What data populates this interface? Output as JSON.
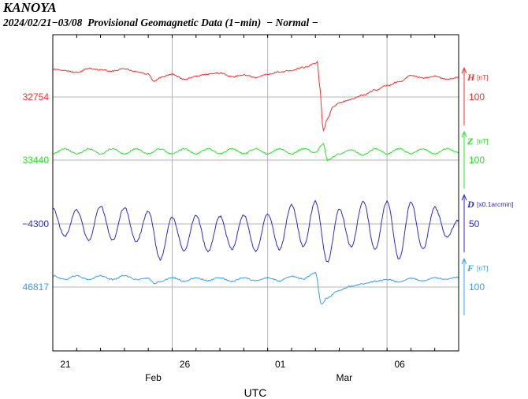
{
  "header": {
    "station": "KANOYA",
    "subtitle": "2024/02/21−03/08  Provisional Geomagnetic Data (1−min)  − Normal −"
  },
  "chart_data": {
    "type": "line",
    "title": "KANOYA",
    "subtitle": "2024/02/21−03/08  Provisional Geomagnetic Data (1−min)  − Normal −",
    "xlabel": "UTC",
    "x_range": [
      "2024-02-21T00:00",
      "2024-03-09T00:00"
    ],
    "x_ticks": [
      {
        "date": "2024-02-21",
        "label": "21"
      },
      {
        "date": "2024-02-26",
        "label": "26"
      },
      {
        "date": "2024-03-01",
        "label": "01"
      },
      {
        "date": "2024-03-06",
        "label": "06"
      }
    ],
    "month_labels": [
      {
        "date": "2024-02-25",
        "label": "Feb"
      },
      {
        "date": "2024-03-04",
        "label": "Mar"
      }
    ],
    "grid": true,
    "series": [
      {
        "name": "H",
        "unit": "[nT]",
        "color": "#ff2a2a",
        "baseline_label": "32754",
        "scale_label": "100",
        "scale_value": 100,
        "points": [
          [
            "2024-02-21T00:00",
            32798
          ],
          [
            "2024-02-21T12:00",
            32796
          ],
          [
            "2024-02-22T00:00",
            32793
          ],
          [
            "2024-02-22T12:00",
            32799
          ],
          [
            "2024-02-23T00:00",
            32797
          ],
          [
            "2024-02-23T12:00",
            32795
          ],
          [
            "2024-02-24T00:00",
            32799
          ],
          [
            "2024-02-24T12:00",
            32794
          ],
          [
            "2024-02-25T00:00",
            32790
          ],
          [
            "2024-02-25T06:00",
            32779
          ],
          [
            "2024-02-25T12:00",
            32785
          ],
          [
            "2024-02-26T00:00",
            32790
          ],
          [
            "2024-02-26T12:00",
            32782
          ],
          [
            "2024-02-27T00:00",
            32787
          ],
          [
            "2024-02-27T12:00",
            32790
          ],
          [
            "2024-02-28T00:00",
            32792
          ],
          [
            "2024-02-28T12:00",
            32786
          ],
          [
            "2024-02-29T00:00",
            32789
          ],
          [
            "2024-02-29T12:00",
            32785
          ],
          [
            "2024-03-01T00:00",
            32790
          ],
          [
            "2024-03-01T12:00",
            32794
          ],
          [
            "2024-03-02T00:00",
            32796
          ],
          [
            "2024-03-02T12:00",
            32801
          ],
          [
            "2024-03-03T00:00",
            32807
          ],
          [
            "2024-03-03T02:00",
            32810
          ],
          [
            "2024-03-03T04:00",
            32775
          ],
          [
            "2024-03-03T08:00",
            32700
          ],
          [
            "2024-03-03T12:00",
            32720
          ],
          [
            "2024-03-03T18:00",
            32738
          ],
          [
            "2024-03-04T00:00",
            32745
          ],
          [
            "2024-03-04T12:00",
            32750
          ],
          [
            "2024-03-05T00:00",
            32757
          ],
          [
            "2024-03-05T12:00",
            32765
          ],
          [
            "2024-03-06T00:00",
            32772
          ],
          [
            "2024-03-06T12:00",
            32778
          ],
          [
            "2024-03-07T00:00",
            32788
          ],
          [
            "2024-03-07T12:00",
            32784
          ],
          [
            "2024-03-08T00:00",
            32787
          ],
          [
            "2024-03-08T12:00",
            32782
          ],
          [
            "2024-03-09T00:00",
            32785
          ]
        ]
      },
      {
        "name": "Z",
        "unit": "[nT]",
        "color": "#22e622",
        "baseline_label": "33440",
        "scale_label": "100",
        "scale_value": 100,
        "points": [
          [
            "2024-02-21T00:00",
            33450
          ],
          [
            "2024-02-21T12:00",
            33458
          ],
          [
            "2024-02-22T00:00",
            33450
          ],
          [
            "2024-02-22T12:00",
            33458
          ],
          [
            "2024-02-23T00:00",
            33450
          ],
          [
            "2024-02-23T12:00",
            33458
          ],
          [
            "2024-02-24T00:00",
            33450
          ],
          [
            "2024-02-24T12:00",
            33458
          ],
          [
            "2024-02-25T00:00",
            33450
          ],
          [
            "2024-02-25T12:00",
            33458
          ],
          [
            "2024-02-26T00:00",
            33450
          ],
          [
            "2024-02-26T12:00",
            33458
          ],
          [
            "2024-02-27T00:00",
            33450
          ],
          [
            "2024-02-27T12:00",
            33458
          ],
          [
            "2024-02-28T00:00",
            33450
          ],
          [
            "2024-02-28T12:00",
            33458
          ],
          [
            "2024-02-29T00:00",
            33450
          ],
          [
            "2024-02-29T12:00",
            33458
          ],
          [
            "2024-03-01T00:00",
            33450
          ],
          [
            "2024-03-01T12:00",
            33458
          ],
          [
            "2024-03-02T00:00",
            33450
          ],
          [
            "2024-03-02T12:00",
            33458
          ],
          [
            "2024-03-03T00:00",
            33452
          ],
          [
            "2024-03-03T08:00",
            33466
          ],
          [
            "2024-03-03T12:00",
            33440
          ],
          [
            "2024-03-04T00:00",
            33450
          ],
          [
            "2024-03-04T12:00",
            33456
          ],
          [
            "2024-03-05T00:00",
            33448
          ],
          [
            "2024-03-05T12:00",
            33458
          ],
          [
            "2024-03-06T00:00",
            33450
          ],
          [
            "2024-03-06T12:00",
            33458
          ],
          [
            "2024-03-07T00:00",
            33450
          ],
          [
            "2024-03-07T12:00",
            33458
          ],
          [
            "2024-03-08T00:00",
            33450
          ],
          [
            "2024-03-08T12:00",
            33458
          ],
          [
            "2024-03-09T00:00",
            33452
          ]
        ]
      },
      {
        "name": "D",
        "unit": "[x0.1arcmin]",
        "color": "#2a2ad6",
        "baseline_label": "−4300",
        "scale_label": "50",
        "scale_value": 50,
        "points": [
          [
            "2024-02-21T00:00",
            -4288
          ],
          [
            "2024-02-21T12:00",
            -4310
          ],
          [
            "2024-02-22T00:00",
            -4289
          ],
          [
            "2024-02-22T12:00",
            -4313
          ],
          [
            "2024-02-23T00:00",
            -4286
          ],
          [
            "2024-02-23T12:00",
            -4313
          ],
          [
            "2024-02-24T00:00",
            -4287
          ],
          [
            "2024-02-24T12:00",
            -4314
          ],
          [
            "2024-02-25T00:00",
            -4290
          ],
          [
            "2024-02-25T12:00",
            -4328
          ],
          [
            "2024-02-26T00:00",
            -4295
          ],
          [
            "2024-02-26T12:00",
            -4321
          ],
          [
            "2024-02-27T00:00",
            -4293
          ],
          [
            "2024-02-27T12:00",
            -4322
          ],
          [
            "2024-02-28T00:00",
            -4294
          ],
          [
            "2024-02-28T12:00",
            -4320
          ],
          [
            "2024-02-29T00:00",
            -4293
          ],
          [
            "2024-02-29T12:00",
            -4322
          ],
          [
            "2024-03-01T00:00",
            -4292
          ],
          [
            "2024-03-01T12:00",
            -4320
          ],
          [
            "2024-03-02T00:00",
            -4285
          ],
          [
            "2024-03-02T12:00",
            -4318
          ],
          [
            "2024-03-03T00:00",
            -4282
          ],
          [
            "2024-03-03T12:00",
            -4330
          ],
          [
            "2024-03-04T00:00",
            -4288
          ],
          [
            "2024-03-04T12:00",
            -4318
          ],
          [
            "2024-03-05T00:00",
            -4282
          ],
          [
            "2024-03-05T12:00",
            -4320
          ],
          [
            "2024-03-06T00:00",
            -4282
          ],
          [
            "2024-03-06T12:00",
            -4328
          ],
          [
            "2024-03-07T00:00",
            -4283
          ],
          [
            "2024-03-07T12:00",
            -4320
          ],
          [
            "2024-03-08T00:00",
            -4287
          ],
          [
            "2024-03-08T12:00",
            -4310
          ],
          [
            "2024-03-09T00:00",
            -4297
          ]
        ]
      },
      {
        "name": "F",
        "unit": "[nT]",
        "color": "#3a9cf0",
        "baseline_label": "46817",
        "scale_label": "100",
        "scale_value": 100,
        "points": [
          [
            "2024-02-21T00:00",
            46835
          ],
          [
            "2024-02-21T12:00",
            46829
          ],
          [
            "2024-02-22T00:00",
            46835
          ],
          [
            "2024-02-22T12:00",
            46829
          ],
          [
            "2024-02-23T00:00",
            46835
          ],
          [
            "2024-02-23T12:00",
            46829
          ],
          [
            "2024-02-24T00:00",
            46835
          ],
          [
            "2024-02-24T12:00",
            46829
          ],
          [
            "2024-02-25T00:00",
            46831
          ],
          [
            "2024-02-25T06:00",
            46823
          ],
          [
            "2024-02-25T12:00",
            46826
          ],
          [
            "2024-02-26T00:00",
            46832
          ],
          [
            "2024-02-26T12:00",
            46826
          ],
          [
            "2024-02-27T00:00",
            46832
          ],
          [
            "2024-02-27T12:00",
            46827
          ],
          [
            "2024-02-28T00:00",
            46832
          ],
          [
            "2024-02-28T12:00",
            46826
          ],
          [
            "2024-02-29T00:00",
            46832
          ],
          [
            "2024-02-29T12:00",
            46827
          ],
          [
            "2024-03-01T00:00",
            46832
          ],
          [
            "2024-03-01T12:00",
            46827
          ],
          [
            "2024-03-02T00:00",
            46834
          ],
          [
            "2024-03-02T12:00",
            46830
          ],
          [
            "2024-03-03T00:00",
            46840
          ],
          [
            "2024-03-03T06:00",
            46790
          ],
          [
            "2024-03-03T12:00",
            46800
          ],
          [
            "2024-03-04T00:00",
            46812
          ],
          [
            "2024-03-04T12:00",
            46818
          ],
          [
            "2024-03-05T00:00",
            46822
          ],
          [
            "2024-03-05T12:00",
            46826
          ],
          [
            "2024-03-06T00:00",
            46829
          ],
          [
            "2024-03-06T12:00",
            46825
          ],
          [
            "2024-03-07T00:00",
            46831
          ],
          [
            "2024-03-07T12:00",
            46827
          ],
          [
            "2024-03-08T00:00",
            46832
          ],
          [
            "2024-03-08T12:00",
            46829
          ],
          [
            "2024-03-09T00:00",
            46833
          ]
        ]
      }
    ]
  }
}
